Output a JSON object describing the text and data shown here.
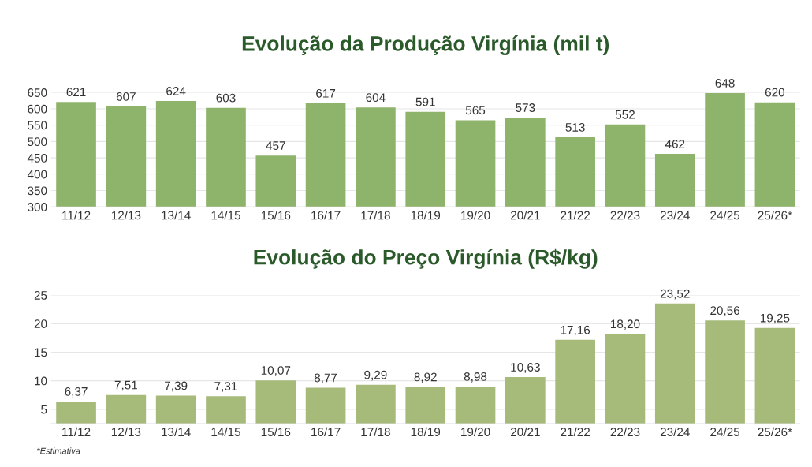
{
  "chart_data": [
    {
      "type": "bar",
      "title": "Evolução da Produção Virgínia (mil t)",
      "categories": [
        "11/12",
        "12/13",
        "13/14",
        "14/15",
        "15/16",
        "16/17",
        "17/18",
        "18/19",
        "19/20",
        "20/21",
        "21/22",
        "22/23",
        "23/24",
        "24/25",
        "25/26*"
      ],
      "values": [
        621,
        607,
        624,
        603,
        457,
        617,
        604,
        591,
        565,
        573,
        513,
        552,
        462,
        648,
        620
      ],
      "color": "#8db46a",
      "ylim": [
        300,
        650
      ],
      "yticks": [
        300,
        350,
        400,
        450,
        500,
        550,
        600,
        650
      ],
      "grid": "y",
      "data_labels": true
    },
    {
      "type": "bar",
      "title": "Evolução do Preço Virgínia (R$/kg)",
      "categories": [
        "11/12",
        "12/13",
        "13/14",
        "14/15",
        "15/16",
        "16/17",
        "17/18",
        "18/19",
        "19/20",
        "20/21",
        "21/22",
        "22/23",
        "23/24",
        "24/25",
        "25/26*"
      ],
      "values": [
        6.37,
        7.51,
        7.39,
        7.31,
        10.07,
        8.77,
        9.29,
        8.92,
        8.98,
        10.63,
        17.16,
        18.2,
        23.52,
        20.56,
        19.25
      ],
      "value_labels": [
        "6,37",
        "7,51",
        "7,39",
        "7,31",
        "10,07",
        "8,77",
        "9,29",
        "8,92",
        "8,98",
        "10,63",
        "17,16",
        "18,20",
        "23,52",
        "20,56",
        "19,25"
      ],
      "color": "#a6ba7a",
      "ylim": [
        2.5,
        25
      ],
      "yticks": [
        5,
        10,
        15,
        20,
        25
      ],
      "grid": "y",
      "annotations": [
        "*Estimativa"
      ]
    }
  ]
}
